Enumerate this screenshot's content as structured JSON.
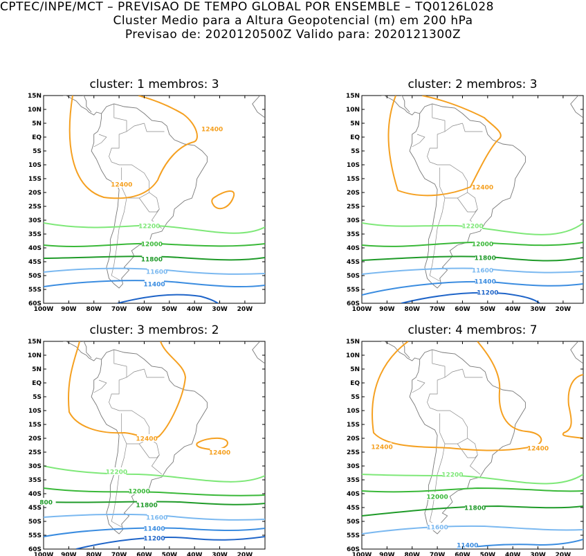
{
  "header": {
    "line1": "CPTEC/INPE/MCT – PREVISAO DE TEMPO GLOBAL POR ENSEMBLE – TQ0126L028",
    "line2": "Cluster Medio para a Altura Geopotencial (m) em 200 hPa",
    "line3": "Previsao de: 2020120500Z    Valido para: 2020121300Z"
  },
  "axes": {
    "lat_labels": [
      "15N",
      "10N",
      "5N",
      "EQ",
      "5S",
      "10S",
      "15S",
      "20S",
      "25S",
      "30S",
      "35S",
      "40S",
      "45S",
      "50S",
      "55S",
      "60S"
    ],
    "lon_labels": [
      "100W",
      "90W",
      "80W",
      "70W",
      "60W",
      "50W",
      "40W",
      "30W",
      "20W"
    ],
    "lat_values": [
      15,
      10,
      5,
      0,
      -5,
      -10,
      -15,
      -20,
      -25,
      -30,
      -35,
      -40,
      -45,
      -50,
      -55,
      -60
    ],
    "lon_values": [
      -100,
      -90,
      -80,
      -70,
      -60,
      -50,
      -40,
      -30,
      -20
    ]
  },
  "contour_colors": {
    "12400": "#f5a020",
    "12200": "#7ee878",
    "12000": "#39b838",
    "11800": "#1e9a28",
    "11600": "#7ab8f0",
    "11400": "#3a8ce0",
    "11200": "#1e64c8"
  },
  "panels": [
    {
      "title": "cluster: 1   membros: 3",
      "labels": [
        {
          "text": "12400",
          "lon": -33,
          "lat": 3
        },
        {
          "text": "12400",
          "lon": -69,
          "lat": -17
        },
        {
          "text": "12200",
          "lon": -58,
          "lat": -32
        },
        {
          "text": "12000",
          "lon": -57,
          "lat": -38.5
        },
        {
          "text": "11800",
          "lon": -57,
          "lat": -44
        },
        {
          "text": "11600",
          "lon": -55,
          "lat": -48.5
        },
        {
          "text": "11400",
          "lon": -56,
          "lat": -53
        }
      ]
    },
    {
      "title": "cluster: 2   membros: 3",
      "labels": [
        {
          "text": "12400",
          "lon": -52,
          "lat": -18
        },
        {
          "text": "12200",
          "lon": -56,
          "lat": -32
        },
        {
          "text": "12000",
          "lon": -52,
          "lat": -38.5
        },
        {
          "text": "11800",
          "lon": -51,
          "lat": -43.5
        },
        {
          "text": "11600",
          "lon": -52,
          "lat": -48
        },
        {
          "text": "11400",
          "lon": -51,
          "lat": -52
        },
        {
          "text": "11200",
          "lon": -50,
          "lat": -56
        }
      ]
    },
    {
      "title": "cluster: 3   membros: 2",
      "labels": [
        {
          "text": "12400",
          "lon": -59,
          "lat": -20
        },
        {
          "text": "12400",
          "lon": -30,
          "lat": -25
        },
        {
          "text": "12200",
          "lon": -71,
          "lat": -32
        },
        {
          "text": "12000",
          "lon": -62,
          "lat": -39
        },
        {
          "text": "800",
          "lon": -99,
          "lat": -43
        },
        {
          "text": "11800",
          "lon": -59,
          "lat": -44
        },
        {
          "text": "11600",
          "lon": -55,
          "lat": -48.5
        },
        {
          "text": "11400",
          "lon": -56,
          "lat": -52.5
        },
        {
          "text": "11200",
          "lon": -56,
          "lat": -56
        }
      ]
    },
    {
      "title": "cluster: 4   membros: 7",
      "labels": [
        {
          "text": "12400",
          "lon": -92,
          "lat": -23
        },
        {
          "text": "12400",
          "lon": -30,
          "lat": -23.5
        },
        {
          "text": "12200",
          "lon": -64,
          "lat": -33
        },
        {
          "text": "12000",
          "lon": -70,
          "lat": -41
        },
        {
          "text": "11800",
          "lon": -55,
          "lat": -45
        },
        {
          "text": "11600",
          "lon": -70,
          "lat": -52
        },
        {
          "text": "11400",
          "lon": -58,
          "lat": -58.5
        }
      ]
    }
  ]
}
